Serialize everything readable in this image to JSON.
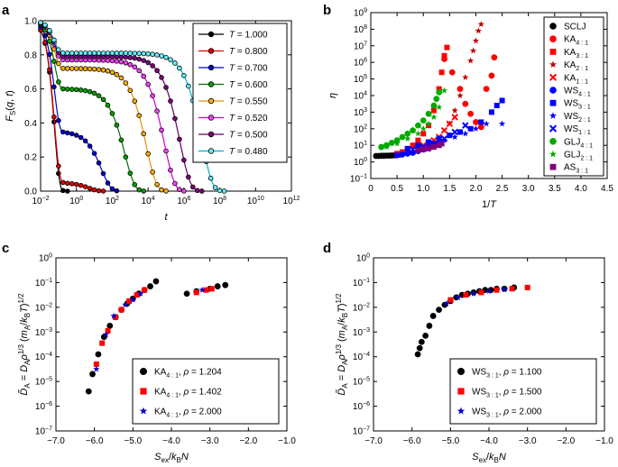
{
  "chart_data": [
    {
      "panel": "a",
      "type": "line",
      "xscale": "log",
      "xlabel": "t",
      "ylabel": "F_S(q, t)",
      "xlim_exp": [
        -2,
        12
      ],
      "xticks": [
        "10−2",
        "100",
        "102",
        "104",
        "106",
        "108",
        "1010",
        "1012"
      ],
      "ylim": [
        0,
        1.0
      ],
      "yticks": [
        "0.0",
        "0.2",
        "0.4",
        "0.6",
        "0.8",
        "1.0"
      ],
      "series": [
        {
          "name": "T = 1.000",
          "T": "1.000",
          "color": "#000000",
          "fill": "#000000",
          "plateau": 0.0,
          "tau": 0.8,
          "beta": 0.95
        },
        {
          "name": "T = 0.800",
          "T": "0.800",
          "color": "#e00000",
          "fill": "#e00000",
          "plateau": 0.05,
          "tau": 5,
          "beta": 0.9
        },
        {
          "name": "T = 0.700",
          "T": "0.700",
          "color": "#0000d0",
          "fill": "#0000d0",
          "plateau": 0.35,
          "tau": 25,
          "beta": 0.85
        },
        {
          "name": "T = 0.600",
          "T": "0.600",
          "color": "#007000",
          "fill": "#00a000",
          "plateau": 0.6,
          "tau": 500,
          "beta": 0.8
        },
        {
          "name": "T = 0.550",
          "T": "0.550",
          "color": "#e89000",
          "fill": "#ffb000",
          "plateau": 0.72,
          "tau": 8000,
          "beta": 0.78
        },
        {
          "name": "T = 0.520",
          "T": "0.520",
          "color": "#d000d0",
          "fill": "#ff40ff",
          "plateau": 0.77,
          "tau": 80000,
          "beta": 0.76
        },
        {
          "name": "T = 0.500",
          "T": "0.500",
          "color": "#600060",
          "fill": "#800080",
          "plateau": 0.79,
          "tau": 600000,
          "beta": 0.75
        },
        {
          "name": "T = 0.480",
          "T": "0.480",
          "color": "#00b0c0",
          "fill": "#60f0ff",
          "plateau": 0.81,
          "tau": 10000000,
          "beta": 0.75
        }
      ]
    },
    {
      "panel": "b",
      "type": "scatter",
      "yscale": "log",
      "xlabel": "1/T",
      "ylabel": "η",
      "xlim": [
        0,
        4.5
      ],
      "xticks": [
        "0",
        "0.5",
        "1.0",
        "1.5",
        "2.0",
        "2.5",
        "3.0",
        "3.5",
        "4.0",
        "4.5"
      ],
      "ylim_exp": [
        -1,
        9
      ],
      "yticks": [
        "10−1",
        "100",
        "101",
        "102",
        "103",
        "104",
        "105",
        "106",
        "107",
        "108",
        "109"
      ],
      "series": [
        {
          "name": "SCLJ",
          "sub": "",
          "marker": "circle",
          "color": "#000000",
          "points": [
            [
              0.1,
              0.36
            ],
            [
              0.15,
              0.36
            ],
            [
              0.2,
              0.37
            ],
            [
              0.25,
              0.37
            ],
            [
              0.3,
              0.38
            ],
            [
              0.35,
              0.38
            ],
            [
              0.4,
              0.39
            ],
            [
              0.45,
              0.4
            ],
            [
              0.5,
              0.42
            ],
            [
              0.55,
              0.44
            ]
          ]
        },
        {
          "name": "KA",
          "sub": "4 : 1",
          "marker": "circle",
          "color": "#ff0000",
          "points": [
            [
              1.4,
              6.2
            ],
            [
              1.55,
              5.4
            ],
            [
              1.7,
              4.4
            ],
            [
              1.8,
              3.5
            ],
            [
              1.9,
              2.9
            ],
            [
              2.0,
              2.4
            ],
            [
              2.1,
              2.1
            ],
            [
              2.2,
              4.4
            ],
            [
              2.3,
              5.2
            ],
            [
              2.35,
              6.3
            ]
          ]
        },
        {
          "name": "KA",
          "sub": "3 : 1",
          "marker": "square",
          "color": "#ff0000",
          "points": [
            [
              0.5,
              0.5
            ],
            [
              0.6,
              0.6
            ],
            [
              0.7,
              0.8
            ],
            [
              0.8,
              1.0
            ],
            [
              0.9,
              1.3
            ],
            [
              1.0,
              1.7
            ],
            [
              1.1,
              2.2
            ],
            [
              1.2,
              3.1
            ],
            [
              1.3,
              4.4
            ],
            [
              1.35,
              5.4
            ],
            [
              1.4,
              6.4
            ],
            [
              1.45,
              6.9
            ]
          ]
        },
        {
          "name": "KA",
          "sub": "2 : 1",
          "marker": "star",
          "color": "#c00000",
          "points": [
            [
              1.5,
              2.3
            ],
            [
              1.6,
              3.1
            ],
            [
              1.7,
              4.0
            ],
            [
              1.8,
              5.1
            ],
            [
              1.9,
              6.1
            ],
            [
              1.95,
              6.7
            ],
            [
              2.0,
              7.3
            ],
            [
              2.05,
              7.9
            ],
            [
              2.1,
              8.3
            ]
          ]
        },
        {
          "name": "KA",
          "sub": "1 : 1",
          "marker": "x",
          "color": "#ff0000",
          "points": [
            [
              0.9,
              0.9
            ],
            [
              1.0,
              1.0
            ],
            [
              1.1,
              1.1
            ],
            [
              1.2,
              1.3
            ],
            [
              1.3,
              1.5
            ],
            [
              1.4,
              1.9
            ],
            [
              1.5,
              2.3
            ],
            [
              1.6,
              2.7
            ]
          ]
        },
        {
          "name": "WS",
          "sub": "4 : 1",
          "marker": "circle",
          "color": "#0000ff",
          "points": [
            [
              0.5,
              0.4
            ],
            [
              0.6,
              0.45
            ],
            [
              0.7,
              0.5
            ],
            [
              0.8,
              0.55
            ],
            [
              0.9,
              0.65
            ],
            [
              1.0,
              0.75
            ],
            [
              1.1,
              0.85
            ],
            [
              1.2,
              1.0
            ],
            [
              1.3,
              1.1
            ]
          ]
        },
        {
          "name": "WS",
          "sub": "3 : 1",
          "marker": "square",
          "color": "#0000ff",
          "points": [
            [
              0.7,
              0.8
            ],
            [
              0.9,
              1.0
            ],
            [
              1.1,
              1.2
            ],
            [
              1.3,
              1.4
            ],
            [
              1.5,
              1.6
            ],
            [
              1.7,
              1.8
            ],
            [
              1.9,
              2.0
            ],
            [
              2.1,
              2.4
            ],
            [
              2.3,
              3.0
            ],
            [
              2.4,
              3.4
            ],
            [
              2.5,
              3.7
            ]
          ]
        },
        {
          "name": "WS",
          "sub": "2 : 1",
          "marker": "star",
          "color": "#0000ff",
          "points": [
            [
              1.2,
              1.1
            ],
            [
              1.4,
              1.3
            ],
            [
              1.6,
              1.5
            ],
            [
              1.8,
              1.7
            ],
            [
              2.0,
              2.0
            ],
            [
              2.2,
              2.3
            ],
            [
              2.5,
              2.3
            ]
          ]
        },
        {
          "name": "WS",
          "sub": "1 : 1",
          "marker": "x",
          "color": "#0000ff",
          "points": [
            [
              0.8,
              0.75
            ],
            [
              1.0,
              0.9
            ],
            [
              1.2,
              1.1
            ],
            [
              1.4,
              1.4
            ],
            [
              1.6,
              1.8
            ],
            [
              1.8,
              2.2
            ]
          ]
        },
        {
          "name": "GLJ",
          "sub": "4 : 1",
          "marker": "circle",
          "color": "#00aa00",
          "points": [
            [
              0.2,
              0.9
            ],
            [
              0.3,
              1.0
            ],
            [
              0.4,
              1.15
            ],
            [
              0.5,
              1.3
            ],
            [
              0.6,
              1.5
            ],
            [
              0.7,
              1.7
            ],
            [
              0.8,
              1.9
            ],
            [
              0.9,
              2.2
            ],
            [
              1.0,
              2.5
            ],
            [
              1.1,
              2.9
            ],
            [
              1.2,
              3.4
            ],
            [
              1.25,
              3.8
            ],
            [
              1.3,
              4.2
            ]
          ]
        },
        {
          "name": "GLJ",
          "sub": "2 : 1",
          "marker": "star",
          "color": "#00aa00",
          "points": [
            [
              0.3,
              0.9
            ],
            [
              0.5,
              1.1
            ],
            [
              0.7,
              1.4
            ],
            [
              0.9,
              1.7
            ],
            [
              1.0,
              2.0
            ],
            [
              1.1,
              2.3
            ],
            [
              1.2,
              2.7
            ],
            [
              1.3,
              3.3
            ],
            [
              1.4,
              4.3
            ]
          ]
        },
        {
          "name": "AS",
          "sub": "3 : 1",
          "marker": "square",
          "color": "#800080",
          "points": [
            [
              0.9,
              0.7
            ],
            [
              1.0,
              0.75
            ],
            [
              1.1,
              0.8
            ],
            [
              1.2,
              0.9
            ],
            [
              1.3,
              1.0
            ],
            [
              1.35,
              1.1
            ]
          ]
        }
      ]
    },
    {
      "panel": "c",
      "type": "scatter",
      "yscale": "log",
      "xlabel": "S_ex/k_B N",
      "ylabel": "D̃_A = D_A ρ^1/3 (m_A/k_B T)^1/2",
      "xlim": [
        -7.0,
        -1.0
      ],
      "xticks": [
        "−7.0",
        "−6.0",
        "−5.0",
        "−4.0",
        "−3.0",
        "−2.0",
        "−1.0"
      ],
      "ylim_exp": [
        -7,
        0
      ],
      "yticks": [
        "10−7",
        "10−6",
        "10−5",
        "10−4",
        "10−3",
        "10−2",
        "10−1",
        "100"
      ],
      "series": [
        {
          "name": "KA",
          "sub": "4 : 1",
          "rho": "1.204",
          "marker": "circle",
          "color": "#000000",
          "points": [
            [
              -6.15,
              -5.4
            ],
            [
              -6.05,
              -4.7
            ],
            [
              -5.9,
              -3.9
            ],
            [
              -5.75,
              -3.2
            ],
            [
              -5.6,
              -2.75
            ],
            [
              -5.45,
              -2.4
            ],
            [
              -5.3,
              -2.1
            ],
            [
              -5.15,
              -1.85
            ],
            [
              -5.0,
              -1.65
            ],
            [
              -4.85,
              -1.45
            ],
            [
              -4.7,
              -1.3
            ],
            [
              -4.55,
              -1.15
            ],
            [
              -4.4,
              -0.95
            ],
            [
              -3.6,
              -1.45
            ],
            [
              -3.35,
              -1.35
            ],
            [
              -3.0,
              -1.25
            ],
            [
              -2.8,
              -1.15
            ],
            [
              -2.6,
              -1.1
            ]
          ]
        },
        {
          "name": "KA",
          "sub": "4 : 1",
          "rho": "1.402",
          "marker": "square",
          "color": "#ff0000",
          "points": [
            [
              -5.95,
              -4.3
            ],
            [
              -5.8,
              -3.45
            ],
            [
              -5.65,
              -2.95
            ],
            [
              -5.45,
              -2.4
            ],
            [
              -5.3,
              -2.1
            ],
            [
              -5.1,
              -1.75
            ],
            [
              -4.9,
              -1.5
            ],
            [
              -4.7,
              -1.3
            ],
            [
              -3.35,
              -1.4
            ],
            [
              -3.1,
              -1.3
            ],
            [
              -2.95,
              -1.25
            ]
          ]
        },
        {
          "name": "KA",
          "sub": "4 : 1",
          "rho": "2.000",
          "marker": "star",
          "color": "#0000cc",
          "points": [
            [
              -5.95,
              -4.5
            ],
            [
              -5.7,
              -3.1
            ],
            [
              -5.5,
              -2.35
            ],
            [
              -5.2,
              -1.9
            ],
            [
              -5.0,
              -1.7
            ],
            [
              -4.8,
              -1.45
            ],
            [
              -3.2,
              -1.3
            ]
          ]
        }
      ]
    },
    {
      "panel": "d",
      "type": "scatter",
      "yscale": "log",
      "xlabel": "S_ex/k_B N",
      "ylabel": "D̃_A = D_A ρ^1/3 (m_A/k_B T)^1/2",
      "xlim": [
        -7.0,
        -1.0
      ],
      "xticks": [
        "−7.0",
        "−6.0",
        "−5.0",
        "−4.0",
        "−3.0",
        "−2.0",
        "−1.0"
      ],
      "ylim_exp": [
        -7,
        0
      ],
      "yticks": [
        "10−7",
        "10−6",
        "10−5",
        "10−4",
        "10−3",
        "10−2",
        "10−1",
        "100"
      ],
      "series": [
        {
          "name": "WS",
          "sub": "3 : 1",
          "rho": "1.100",
          "marker": "circle",
          "color": "#000000",
          "points": [
            [
              -5.85,
              -3.9
            ],
            [
              -5.8,
              -3.65
            ],
            [
              -5.75,
              -3.4
            ],
            [
              -5.65,
              -3.15
            ],
            [
              -5.55,
              -2.75
            ],
            [
              -5.45,
              -2.35
            ],
            [
              -5.3,
              -2.1
            ],
            [
              -5.15,
              -1.9
            ],
            [
              -5.0,
              -1.75
            ],
            [
              -4.85,
              -1.6
            ],
            [
              -4.7,
              -1.5
            ],
            [
              -4.55,
              -1.45
            ],
            [
              -4.4,
              -1.4
            ],
            [
              -4.25,
              -1.35
            ],
            [
              -4.1,
              -1.3
            ],
            [
              -3.95,
              -1.3
            ],
            [
              -3.8,
              -1.25
            ],
            [
              -3.6,
              -1.25
            ],
            [
              -3.35,
              -1.2
            ]
          ]
        },
        {
          "name": "WS",
          "sub": "3 : 1",
          "rho": "1.500",
          "marker": "square",
          "color": "#ff0000",
          "points": [
            [
              -5.0,
              -1.7
            ],
            [
              -4.6,
              -1.5
            ],
            [
              -4.2,
              -1.4
            ],
            [
              -3.8,
              -1.3
            ],
            [
              -3.4,
              -1.25
            ],
            [
              -3.0,
              -1.2
            ]
          ]
        },
        {
          "name": "WS",
          "sub": "3 : 1",
          "rho": "2.000",
          "marker": "star",
          "color": "#0000cc",
          "points": [
            [
              -5.1,
              -1.85
            ],
            [
              -4.8,
              -1.6
            ],
            [
              -4.4,
              -1.45
            ],
            [
              -4.0,
              -1.35
            ],
            [
              -3.6,
              -1.28
            ]
          ]
        }
      ]
    }
  ],
  "panel_labels": {
    "a": "a",
    "b": "b",
    "c": "c",
    "d": "d"
  }
}
